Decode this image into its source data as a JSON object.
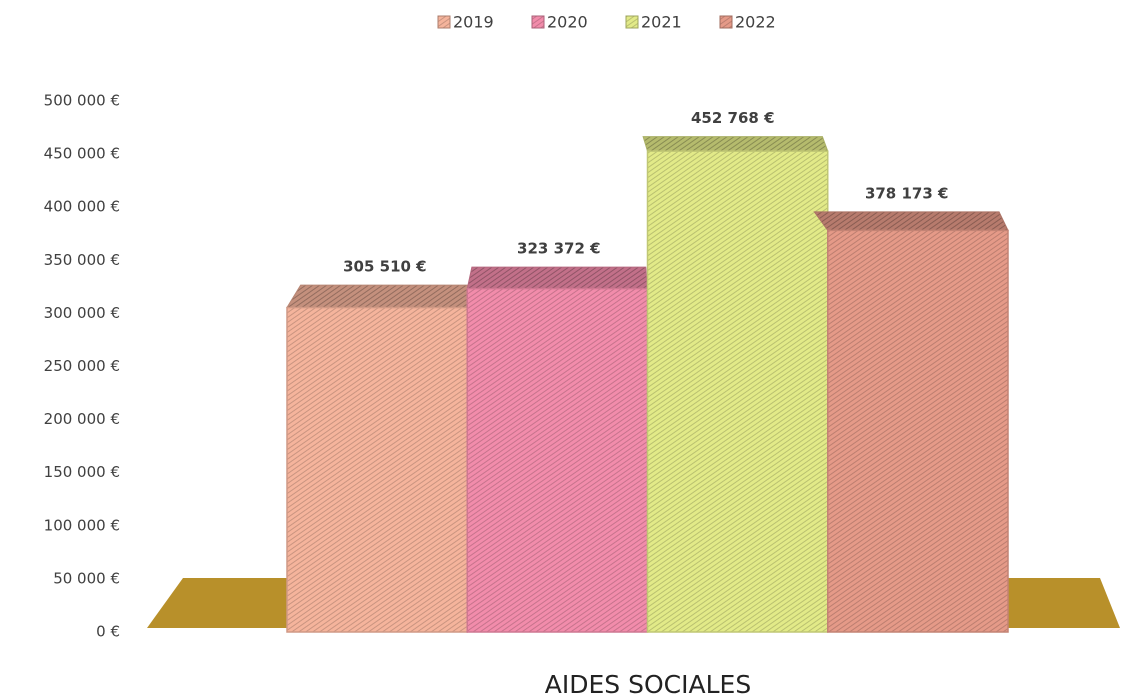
{
  "chart_data": {
    "type": "bar",
    "categories": [
      "AIDES SOCIALES"
    ],
    "series": [
      {
        "name": "2019",
        "color": "#f5b49c",
        "values": [
          305510
        ],
        "value_labels": [
          "305 510 €"
        ]
      },
      {
        "name": "2020",
        "color": "#f28cab",
        "values": [
          323372
        ],
        "value_labels": [
          "323 372 €"
        ]
      },
      {
        "name": "2021",
        "color": "#e2ea88",
        "values": [
          452768
        ],
        "value_labels": [
          "452 768 €"
        ]
      },
      {
        "name": "2022",
        "color": "#e59a88",
        "values": [
          378173
        ],
        "value_labels": [
          "378 173 €"
        ]
      }
    ],
    "ylim": [
      0,
      500000
    ],
    "yticks": [
      {
        "value": 0,
        "label": "0 €"
      },
      {
        "value": 50000,
        "label": "50 000 €"
      },
      {
        "value": 100000,
        "label": "100 000 €"
      },
      {
        "value": 150000,
        "label": "150 000 €"
      },
      {
        "value": 200000,
        "label": "200 000 €"
      },
      {
        "value": 250000,
        "label": "250 000 €"
      },
      {
        "value": 300000,
        "label": "300 000 €"
      },
      {
        "value": 350000,
        "label": "350 000 €"
      },
      {
        "value": 400000,
        "label": "400 000 €"
      },
      {
        "value": 450000,
        "label": "450 000 €"
      },
      {
        "value": 500000,
        "label": "500 000 €"
      }
    ],
    "legend": "top",
    "grid": false
  }
}
